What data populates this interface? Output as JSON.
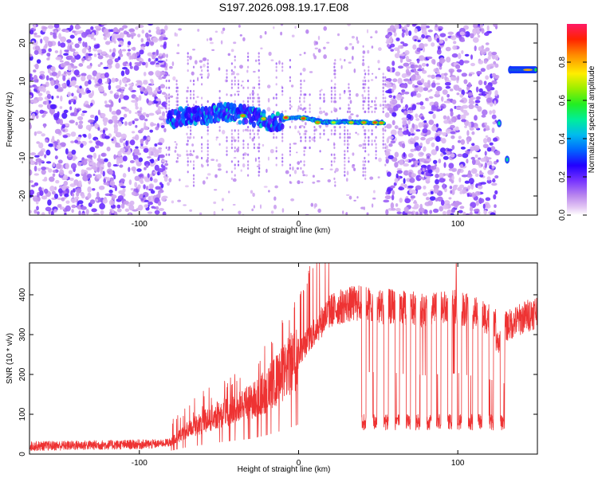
{
  "title": "S197.2026.098.19.17.E08",
  "chart_data": [
    {
      "type": "heatmap",
      "name": "spectrogram",
      "xlabel": "Height of straight line (km)",
      "ylabel": "Frequency (Hz)",
      "xlim": [
        -169,
        150
      ],
      "ylim": [
        -25,
        25
      ],
      "xticks": [
        -100,
        0,
        100
      ],
      "yticks": [
        -20,
        -10,
        0,
        10,
        20
      ],
      "colorbar": {
        "label": "Normalized spectral amplitude",
        "range": [
          0.0,
          1.0
        ],
        "ticks": [
          0.0,
          0.2,
          0.4,
          0.6,
          0.8
        ],
        "tick_labels": [
          "0.0",
          "0.2",
          "0.4",
          "0.6",
          "0.8"
        ]
      },
      "noise_regions_km": [
        [
          -169,
          -83
        ],
        [
          55,
          125
        ]
      ],
      "sparse_region_km": [
        -83,
        55
      ],
      "signal_track": [
        {
          "x": -82,
          "f": 0.0
        },
        {
          "x": -70,
          "f": 0.8
        },
        {
          "x": -55,
          "f": 1.5
        },
        {
          "x": -40,
          "f": 2.0
        },
        {
          "x": -30,
          "f": 0.8
        },
        {
          "x": -15,
          "f": -0.8
        },
        {
          "x": -5,
          "f": 0.6
        },
        {
          "x": 5,
          "f": 0.4
        },
        {
          "x": 15,
          "f": -0.7
        },
        {
          "x": 30,
          "f": -0.6
        },
        {
          "x": 45,
          "f": -0.8
        },
        {
          "x": 54,
          "f": -0.8
        }
      ],
      "peaks": [
        {
          "x": -35,
          "f": 1.0,
          "amp": 0.85
        },
        {
          "x": -22,
          "f": 0.2,
          "amp": 0.8
        },
        {
          "x": -8,
          "f": 0.5,
          "amp": 0.95
        },
        {
          "x": 3,
          "f": 0.3,
          "amp": 0.9
        },
        {
          "x": 12,
          "f": -0.8,
          "amp": 0.85
        },
        {
          "x": 22,
          "f": -0.8,
          "amp": 0.7
        },
        {
          "x": 33,
          "f": -0.8,
          "amp": 0.8
        },
        {
          "x": 41,
          "f": -0.8,
          "amp": 0.85
        },
        {
          "x": 48,
          "f": -0.8,
          "amp": 0.9
        },
        {
          "x": 52,
          "f": -0.9,
          "amp": 0.85
        }
      ],
      "late_features": [
        {
          "x": 126,
          "f": -1.0
        },
        {
          "x": 131,
          "f": -10.5
        },
        {
          "x": 133,
          "f": 13.0
        }
      ],
      "late_band": {
        "x0": 133,
        "x1": 149,
        "f": 13.0
      }
    },
    {
      "type": "line",
      "name": "snr",
      "xlabel": "Height of straight line (km)",
      "ylabel": "SNR (10 * v/v)",
      "xlim": [
        -169,
        150
      ],
      "ylim": [
        0,
        480
      ],
      "xticks": [
        -100,
        0,
        100
      ],
      "yticks": [
        0,
        100,
        200,
        300,
        400
      ],
      "color": "#ee3333",
      "envelope": {
        "x": [
          -169,
          -90,
          -80,
          -70,
          -60,
          -50,
          -40,
          -30,
          -20,
          -10,
          0,
          10,
          20,
          30,
          40,
          50,
          60,
          70,
          80,
          90,
          100,
          110,
          120,
          125,
          130,
          140,
          150
        ],
        "y": [
          20,
          25,
          30,
          60,
          80,
          100,
          115,
          130,
          160,
          200,
          250,
          310,
          360,
          375,
          380,
          370,
          370,
          365,
          360,
          365,
          370,
          355,
          340,
          330,
          320,
          340,
          360
        ]
      },
      "dropouts": {
        "x": [
          41,
          48,
          55,
          62,
          69,
          75,
          82,
          88,
          95,
          101,
          108,
          114,
          121,
          128
        ],
        "floor": 80
      },
      "max_spike": {
        "x": 99,
        "y": 478
      }
    }
  ]
}
